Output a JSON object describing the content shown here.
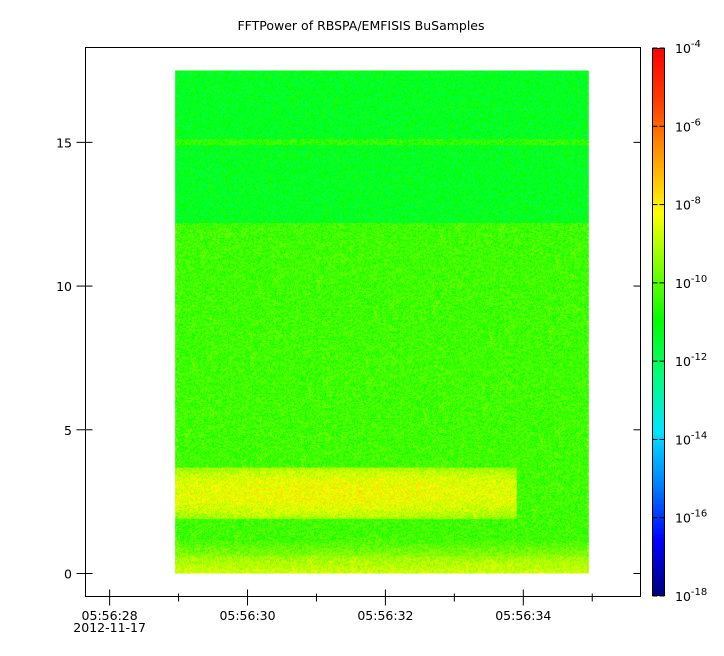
{
  "chart_data": {
    "type": "heatmap",
    "title": "FFTPower of RBSPA/EMFISIS  BuSamples",
    "xlabel": "",
    "ylabel": "",
    "x_ticks": [
      {
        "label": "05:56:28",
        "sublabel": "2012-11-17",
        "t": 0
      },
      {
        "label": "05:56:30",
        "t": 2
      },
      {
        "label": "05:56:32",
        "t": 4
      },
      {
        "label": "05:56:34",
        "t": 6
      }
    ],
    "x_minor_ticks": [
      1,
      3,
      5,
      7
    ],
    "xlim": [
      -0.35,
      7.7
    ],
    "y_ticks": [
      0,
      5,
      10,
      15
    ],
    "ylim": [
      -0.8,
      18.3
    ],
    "data_extent": {
      "t_start": 0.95,
      "t_end": 6.95,
      "y_start": 0,
      "y_end": 17.5
    },
    "colorbar": {
      "scale": "log",
      "range": [
        1e-18,
        0.0001
      ],
      "tick_labels": [
        {
          "base": "10",
          "exp": "-4",
          "exp_value": -4
        },
        {
          "base": "10",
          "exp": "-6",
          "exp_value": -6
        },
        {
          "base": "10",
          "exp": "-8",
          "exp_value": -8
        },
        {
          "base": "10",
          "exp": "-10",
          "exp_value": -10
        },
        {
          "base": "10",
          "exp": "-12",
          "exp_value": -12
        },
        {
          "base": "10",
          "exp": "-14",
          "exp_value": -14
        },
        {
          "base": "10",
          "exp": "-16",
          "exp_value": -16
        },
        {
          "base": "10",
          "exp": "-18",
          "exp_value": -18
        }
      ],
      "colors": [
        "#00007f",
        "#0000ff",
        "#007fff",
        "#00e5ff",
        "#00ff7f",
        "#00ff00",
        "#7fff00",
        "#ffff00",
        "#ff9f00",
        "#ff3f00",
        "#ff0000"
      ]
    },
    "features": [
      {
        "name": "low-frequency band",
        "y_range": [
          0,
          0.6
        ],
        "t_range": [
          0.95,
          6.95
        ],
        "log_power": -8.7
      },
      {
        "name": "emission band",
        "y_range": [
          1.9,
          3.7
        ],
        "t_range": [
          0.95,
          5.9
        ],
        "log_power": -8.3
      },
      {
        "name": "background",
        "y_range": [
          0.6,
          12.2
        ],
        "t_range": [
          0.95,
          6.95
        ],
        "log_power": -10.3
      },
      {
        "name": "upper background",
        "y_range": [
          12.2,
          17.5
        ],
        "t_range": [
          0.95,
          6.95
        ],
        "log_power": -11.3
      },
      {
        "name": "line at 15",
        "y_range": [
          14.9,
          15.1
        ],
        "t_range": [
          0.95,
          6.95
        ],
        "log_power": -10.5
      }
    ]
  }
}
